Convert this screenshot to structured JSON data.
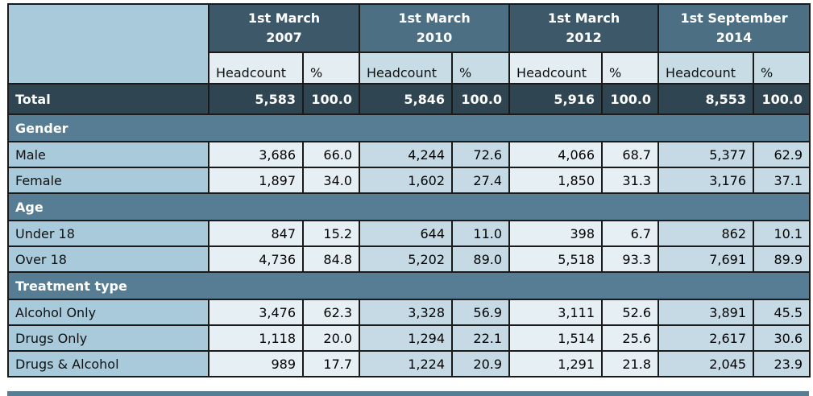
{
  "periods": [
    {
      "line1": "1st March",
      "line2": "2007"
    },
    {
      "line1": "1st March",
      "line2": "2010"
    },
    {
      "line1": "1st March",
      "line2": "2012"
    },
    {
      "line1": "1st September",
      "line2": "2014"
    }
  ],
  "subheaders": {
    "headcount": "Headcount",
    "pct": "%"
  },
  "total": {
    "label": "Total",
    "values": [
      [
        "5,583",
        "100.0"
      ],
      [
        "5,846",
        "100.0"
      ],
      [
        "5,916",
        "100.0"
      ],
      [
        "8,553",
        "100.0"
      ]
    ]
  },
  "sections": [
    {
      "title": "Gender",
      "rows": [
        {
          "label": "Male",
          "values": [
            [
              "3,686",
              "66.0"
            ],
            [
              "4,244",
              "72.6"
            ],
            [
              "4,066",
              "68.7"
            ],
            [
              "5,377",
              "62.9"
            ]
          ]
        },
        {
          "label": "Female",
          "values": [
            [
              "1,897",
              "34.0"
            ],
            [
              "1,602",
              "27.4"
            ],
            [
              "1,850",
              "31.3"
            ],
            [
              "3,176",
              "37.1"
            ]
          ]
        }
      ]
    },
    {
      "title": "Age",
      "rows": [
        {
          "label": "Under 18",
          "values": [
            [
              "847",
              "15.2"
            ],
            [
              "644",
              "11.0"
            ],
            [
              "398",
              "6.7"
            ],
            [
              "862",
              "10.1"
            ]
          ]
        },
        {
          "label": "Over 18",
          "values": [
            [
              "4,736",
              "84.8"
            ],
            [
              "5,202",
              "89.0"
            ],
            [
              "5,518",
              "93.3"
            ],
            [
              "7,691",
              "89.9"
            ]
          ]
        }
      ]
    },
    {
      "title": "Treatment type",
      "rows": [
        {
          "label": "Alcohol Only",
          "values": [
            [
              "3,476",
              "62.3"
            ],
            [
              "3,328",
              "56.9"
            ],
            [
              "3,111",
              "52.6"
            ],
            [
              "3,891",
              "45.5"
            ]
          ]
        },
        {
          "label": "Drugs Only",
          "values": [
            [
              "1,118",
              "20.0"
            ],
            [
              "1,294",
              "22.1"
            ],
            [
              "1,514",
              "25.6"
            ],
            [
              "2,617",
              "30.6"
            ]
          ]
        },
        {
          "label": "Drugs & Alcohol",
          "values": [
            [
              "989",
              "17.7"
            ],
            [
              "1,224",
              "20.9"
            ],
            [
              "1,291",
              "21.8"
            ],
            [
              "2,045",
              "23.9"
            ]
          ]
        }
      ]
    }
  ],
  "colors": {
    "header": "#3d5868",
    "label_bg": "#a8cadb",
    "total_bg": "#2f4552",
    "section_bg": "#567d93"
  }
}
